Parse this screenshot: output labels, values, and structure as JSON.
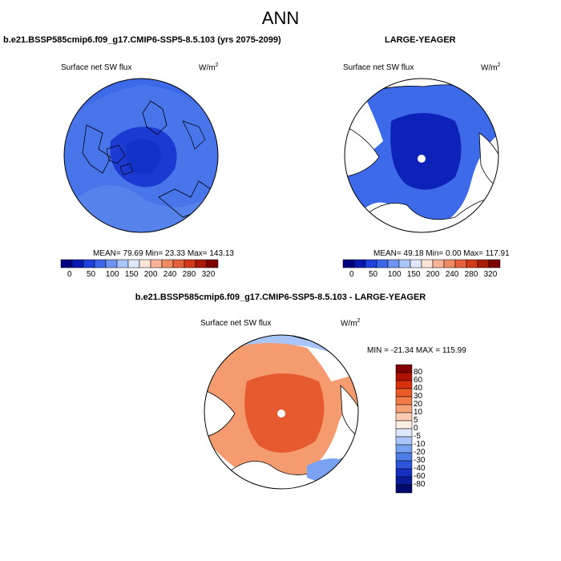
{
  "title": "ANN",
  "panels": [
    {
      "case": "b.e21.BSSP585cmip6.f09_g17.CMIP6-SSP5-8.5.103 (yrs 2075-2099)",
      "variable": "Surface net SW flux",
      "units_base": "W/m",
      "units_exp": "2",
      "stats": "MEAN=  79.69  Min=  23.33  Max= 143.13",
      "colorbar_ticks": [
        "0",
        "50",
        "100",
        "150",
        "200",
        "240",
        "280",
        "320"
      ]
    },
    {
      "case": "LARGE-YEAGER",
      "variable": "Surface net SW flux",
      "units_base": "W/m",
      "units_exp": "2",
      "stats": "MEAN=  49.18  Min=   0.00  Max= 117.91",
      "colorbar_ticks": [
        "0",
        "50",
        "100",
        "150",
        "200",
        "240",
        "280",
        "320"
      ]
    },
    {
      "case": "b.e21.BSSP585cmip6.f09_g17.CMIP6-SSP5-8.5.103 - LARGE-YEAGER",
      "variable": "Surface net SW flux",
      "units_base": "W/m",
      "units_exp": "2",
      "stats": "MIN = -21.34 MAX = 115.99",
      "colorbar_ticks": [
        "80",
        "60",
        "40",
        "30",
        "20",
        "10",
        "5",
        "0",
        "-5",
        "-10",
        "-20",
        "-30",
        "-40",
        "-60",
        "-80"
      ]
    }
  ],
  "colors": {
    "abs_scale": [
      "#00007f",
      "#0a1ab0",
      "#1e40dc",
      "#3c66e8",
      "#6e93f0",
      "#a8c4f8",
      "#dde8fc",
      "#fde4d6",
      "#f8b398",
      "#f08a64",
      "#e6603a",
      "#d23a18",
      "#a81c08",
      "#7f0000"
    ],
    "diff_scale": [
      "#7f0000",
      "#b01000",
      "#d8300c",
      "#ec5a26",
      "#f47a46",
      "#f8a27a",
      "#fccbb0",
      "#fdeee4",
      "#dde8fc",
      "#a8c4f8",
      "#7aa2f2",
      "#4f7de8",
      "#2c55dc",
      "#142ec0",
      "#081c9a",
      "#000a6e"
    ],
    "panel1_fill": "#2f5ce6",
    "panel2_fill": "#1a38d2",
    "panel3_fill": "#e8552e"
  }
}
